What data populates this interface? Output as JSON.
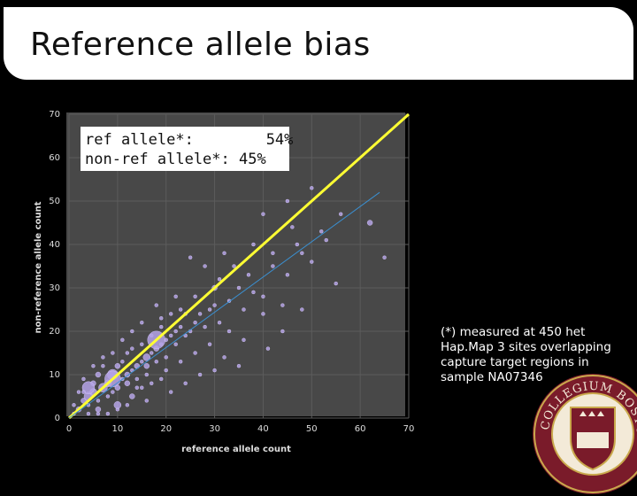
{
  "slide": {
    "title": "Reference allele bias",
    "legend": {
      "ref_line": "ref allele*:        54%",
      "nonref_line": "non-ref allele*: 45%"
    },
    "footnote": "(*) measured at 450 het Hap.Map 3 sites overlapping capture target regions in sample NA07346",
    "seal_text": "COLLEGIUM BOSTONIENSE"
  },
  "chart_data": {
    "type": "scatter",
    "xlabel": "reference allele count",
    "ylabel": "non-reference allele count",
    "xlim": [
      0,
      70
    ],
    "ylim": [
      0,
      70
    ],
    "xticks": [
      0,
      10,
      20,
      30,
      40,
      50,
      60,
      70
    ],
    "yticks": [
      0,
      10,
      20,
      30,
      40,
      50,
      60,
      70
    ],
    "grid": true,
    "colors": {
      "points": "#b5a3e6",
      "diagonal": "#ffff33",
      "fit": "#3a8fd0",
      "background": "#4a4a4a"
    },
    "reference_lines": [
      {
        "x": [
          0,
          70
        ],
        "y": [
          0,
          70
        ]
      },
      {
        "x": [
          0,
          64
        ],
        "y": [
          0,
          52
        ]
      }
    ],
    "points": [
      [
        2,
        2,
        3
      ],
      [
        3,
        4,
        3
      ],
      [
        4,
        3,
        2
      ],
      [
        4,
        5,
        5
      ],
      [
        5,
        6,
        4
      ],
      [
        5,
        8,
        3
      ],
      [
        6,
        4,
        2
      ],
      [
        6,
        10,
        3
      ],
      [
        7,
        7,
        5
      ],
      [
        7,
        12,
        2
      ],
      [
        8,
        8,
        4
      ],
      [
        8,
        5,
        2
      ],
      [
        9,
        10,
        6
      ],
      [
        9,
        6,
        2
      ],
      [
        10,
        7,
        3
      ],
      [
        10,
        12,
        3
      ],
      [
        11,
        9,
        2
      ],
      [
        11,
        13,
        2
      ],
      [
        12,
        10,
        3
      ],
      [
        12,
        15,
        2
      ],
      [
        13,
        11,
        2
      ],
      [
        13,
        16,
        2
      ],
      [
        14,
        12,
        3
      ],
      [
        14,
        9,
        2
      ],
      [
        15,
        13,
        2
      ],
      [
        15,
        17,
        2
      ],
      [
        16,
        14,
        4
      ],
      [
        16,
        10,
        2
      ],
      [
        17,
        15,
        2
      ],
      [
        17,
        19,
        2
      ],
      [
        18,
        16,
        3
      ],
      [
        18,
        13,
        2
      ],
      [
        19,
        17,
        2
      ],
      [
        19,
        21,
        2
      ],
      [
        20,
        18,
        2
      ],
      [
        20,
        14,
        2
      ],
      [
        21,
        19,
        2
      ],
      [
        22,
        20,
        2
      ],
      [
        22,
        17,
        2
      ],
      [
        23,
        21,
        2
      ],
      [
        24,
        19,
        2
      ],
      [
        24,
        24,
        2
      ],
      [
        25,
        20,
        2
      ],
      [
        26,
        22,
        2
      ],
      [
        27,
        24,
        2
      ],
      [
        28,
        21,
        2
      ],
      [
        29,
        25,
        2
      ],
      [
        30,
        26,
        2
      ],
      [
        31,
        22,
        2
      ],
      [
        33,
        27,
        2
      ],
      [
        35,
        30,
        2
      ],
      [
        36,
        25,
        2
      ],
      [
        38,
        29,
        2
      ],
      [
        40,
        28,
        2
      ],
      [
        42,
        35,
        2
      ],
      [
        45,
        33,
        2
      ],
      [
        48,
        38,
        2
      ],
      [
        52,
        43,
        2
      ],
      [
        55,
        31,
        2
      ],
      [
        62,
        45,
        3
      ],
      [
        65,
        37,
        2
      ],
      [
        50,
        53,
        2
      ],
      [
        40,
        47,
        2
      ],
      [
        45,
        50,
        2
      ],
      [
        32,
        38,
        2
      ],
      [
        28,
        35,
        2
      ],
      [
        25,
        37,
        2
      ],
      [
        30,
        30,
        3
      ],
      [
        22,
        28,
        2
      ],
      [
        18,
        26,
        2
      ],
      [
        15,
        22,
        2
      ],
      [
        13,
        20,
        2
      ],
      [
        11,
        18,
        2
      ],
      [
        9,
        15,
        2
      ],
      [
        7,
        14,
        2
      ],
      [
        5,
        12,
        2
      ],
      [
        3,
        9,
        2
      ],
      [
        2,
        6,
        2
      ],
      [
        1,
        3,
        2
      ],
      [
        1,
        1,
        2
      ],
      [
        14,
        7,
        2
      ],
      [
        17,
        8,
        2
      ],
      [
        20,
        11,
        2
      ],
      [
        23,
        13,
        2
      ],
      [
        26,
        15,
        2
      ],
      [
        29,
        17,
        2
      ],
      [
        33,
        20,
        2
      ],
      [
        36,
        18,
        2
      ],
      [
        40,
        24,
        2
      ],
      [
        44,
        26,
        2
      ],
      [
        27,
        10,
        2
      ],
      [
        24,
        8,
        2
      ],
      [
        21,
        6,
        2
      ],
      [
        19,
        9,
        2
      ],
      [
        16,
        4,
        2
      ],
      [
        12,
        3,
        2
      ],
      [
        10,
        2,
        2
      ],
      [
        8,
        1,
        2
      ],
      [
        6,
        1,
        2
      ],
      [
        4,
        1,
        2
      ],
      [
        38,
        40,
        2
      ],
      [
        42,
        38,
        2
      ],
      [
        46,
        44,
        2
      ],
      [
        37,
        33,
        2
      ],
      [
        34,
        35,
        2
      ],
      [
        31,
        32,
        2
      ],
      [
        26,
        28,
        2
      ],
      [
        23,
        25,
        2
      ],
      [
        21,
        24,
        2
      ],
      [
        19,
        23,
        2
      ],
      [
        47,
        40,
        2
      ],
      [
        50,
        36,
        2
      ],
      [
        53,
        41,
        2
      ],
      [
        56,
        47,
        2
      ],
      [
        44,
        20,
        2
      ],
      [
        48,
        25,
        2
      ],
      [
        41,
        16,
        2
      ],
      [
        35,
        12,
        2
      ],
      [
        32,
        14,
        2
      ],
      [
        30,
        11,
        2
      ],
      [
        9,
        9,
        9
      ],
      [
        18,
        18,
        10
      ],
      [
        4,
        7,
        7
      ],
      [
        10,
        3,
        4
      ],
      [
        13,
        5,
        3
      ],
      [
        6,
        2,
        3
      ],
      [
        3,
        6,
        2
      ],
      [
        12,
        8,
        3
      ],
      [
        15,
        7,
        2
      ],
      [
        16,
        12,
        3
      ]
    ]
  }
}
